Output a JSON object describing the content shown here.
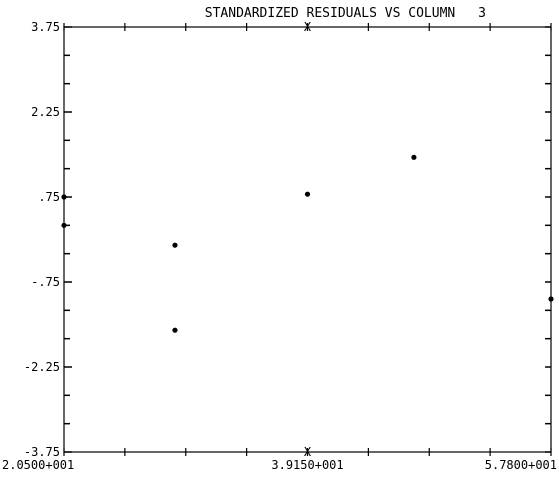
{
  "chart_data": {
    "type": "scatter",
    "title": "STANDARDIZED RESIDUALS VS COLUMN",
    "title_number": "3",
    "xlabel": "",
    "ylabel": "",
    "xlim": [
      20.5,
      57.8
    ],
    "ylim": [
      -3.75,
      3.75
    ],
    "x_tick_labels": [
      "2.0500+001",
      "3.9150+001",
      "5.7800+001"
    ],
    "x_tick_values": [
      20.5,
      39.15,
      57.8
    ],
    "y_tick_labels": [
      "3.75",
      "2.25",
      ".75",
      "-.75",
      "-2.25",
      "-3.75"
    ],
    "y_tick_values": [
      3.75,
      2.25,
      0.75,
      -0.75,
      -2.25,
      -3.75
    ],
    "points": [
      {
        "x": 20.5,
        "y": 0.75
      },
      {
        "x": 20.5,
        "y": 0.25
      },
      {
        "x": 29.0,
        "y": -0.1
      },
      {
        "x": 29.0,
        "y": -1.6
      },
      {
        "x": 39.15,
        "y": 0.8
      },
      {
        "x": 47.3,
        "y": 1.45
      },
      {
        "x": 57.8,
        "y": -1.05
      }
    ],
    "grid": false,
    "legend": "none"
  }
}
